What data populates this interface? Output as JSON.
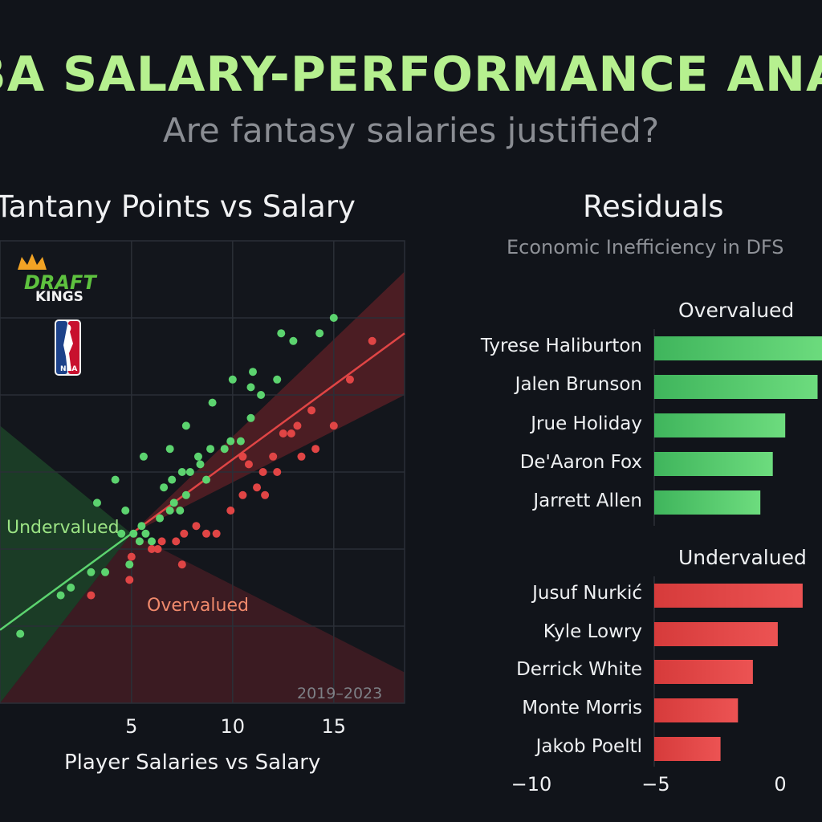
{
  "header": {
    "title": "BA SALARY-PERFORMANCE ANALYSIS",
    "subtitle": "Are fantasy salaries justified?"
  },
  "logos": {
    "draftkings_line1": "DRAFT",
    "draftkings_line2": "KINGS",
    "nba_text": "NBA"
  },
  "colors": {
    "green": "#5cd36f",
    "red": "#e04545",
    "title_green": "#b6f08f",
    "background": "#11141a"
  },
  "chart_data": [
    {
      "type": "scatter",
      "title": "Tantany Points vs Salary",
      "xlabel": "Player Salaries vs Salary",
      "ylabel": "",
      "xlim": [
        -1.5,
        18.5
      ],
      "ylim": [
        0,
        60
      ],
      "x_ticks": [
        5,
        10,
        15
      ],
      "grid": true,
      "region_labels": {
        "upper": "Undervalued",
        "lower": "Overvalued"
      },
      "annotation": "2019–2023",
      "series": [
        {
          "color": "#5cd36f",
          "points": [
            [
              -0.5,
              9
            ],
            [
              1.5,
              14
            ],
            [
              2,
              15
            ],
            [
              3,
              17
            ],
            [
              3.7,
              17
            ],
            [
              3.3,
              26
            ],
            [
              4.5,
              22
            ],
            [
              4.9,
              18
            ],
            [
              4.2,
              29
            ],
            [
              4.7,
              25
            ],
            [
              5.1,
              22
            ],
            [
              5.4,
              21
            ],
            [
              5.5,
              23
            ],
            [
              5.7,
              22
            ],
            [
              6,
              21
            ],
            [
              6.4,
              24
            ],
            [
              6.9,
              25
            ],
            [
              7.1,
              26
            ],
            [
              6.6,
              28
            ],
            [
              7.4,
              25
            ],
            [
              7.7,
              27
            ],
            [
              7,
              29
            ],
            [
              7.5,
              30
            ],
            [
              7.9,
              30
            ],
            [
              8.7,
              29
            ],
            [
              8.4,
              31
            ],
            [
              8.3,
              32
            ],
            [
              8.9,
              33
            ],
            [
              9.6,
              33
            ],
            [
              9.9,
              34
            ],
            [
              10.4,
              34
            ],
            [
              10.9,
              37
            ],
            [
              5.6,
              32
            ],
            [
              6.9,
              33
            ],
            [
              7.7,
              36
            ],
            [
              9,
              39
            ],
            [
              10,
              42
            ],
            [
              10.9,
              41
            ],
            [
              11.4,
              40
            ],
            [
              11,
              43
            ],
            [
              12.2,
              42
            ],
            [
              12.4,
              48
            ],
            [
              13,
              47
            ],
            [
              14.3,
              48
            ],
            [
              15,
              50
            ]
          ]
        },
        {
          "color": "#e04545",
          "points": [
            [
              3,
              14
            ],
            [
              4.9,
              16
            ],
            [
              5,
              19
            ],
            [
              6,
              20
            ],
            [
              6.3,
              20
            ],
            [
              6.5,
              21
            ],
            [
              7.5,
              18
            ],
            [
              7.2,
              21
            ],
            [
              7.6,
              22
            ],
            [
              8.2,
              23
            ],
            [
              8.7,
              22
            ],
            [
              9.2,
              22
            ],
            [
              9.9,
              25
            ],
            [
              10.5,
              27
            ],
            [
              11.2,
              28
            ],
            [
              11.6,
              27
            ],
            [
              12.2,
              30
            ],
            [
              12,
              32
            ],
            [
              12.5,
              35
            ],
            [
              12.9,
              35
            ],
            [
              13.2,
              36
            ],
            [
              13.9,
              38
            ],
            [
              13.4,
              32
            ],
            [
              10.8,
              31
            ],
            [
              11.5,
              30
            ],
            [
              14.1,
              33
            ],
            [
              15,
              36
            ],
            [
              15.8,
              42
            ],
            [
              16.9,
              47
            ],
            [
              10.5,
              32
            ]
          ]
        }
      ],
      "trend_line": {
        "color": "#5cd36f",
        "from": [
          -1.5,
          9.5
        ],
        "to": [
          5,
          22
        ]
      },
      "fit_line": {
        "color": "#e04545",
        "from": [
          5,
          22
        ],
        "to": [
          18.5,
          48
        ]
      }
    },
    {
      "type": "bar",
      "orientation": "horizontal",
      "title": "Residuals",
      "subtitle": "Economic Inefficiency in DFS",
      "x_ticks": [
        -10,
        -5,
        0
      ],
      "groups": [
        {
          "name": "Overvalued",
          "color": "#5cd36f",
          "categories": [
            "Tyrese Haliburton",
            "Jalen Brunson",
            "Jrue Holiday",
            "De'Aaron Fox",
            "Jarrett Allen"
          ],
          "values": [
            2.0,
            1.5,
            0.2,
            -0.3,
            -0.8
          ]
        },
        {
          "name": "Undervalued",
          "color": "#e04545",
          "categories": [
            "Jusuf Nurkić",
            "Kyle Lowry",
            "Derrick White",
            "Monte Morris",
            "Jakob Poeltl"
          ],
          "values": [
            0.9,
            -0.1,
            -1.1,
            -1.7,
            -2.4
          ]
        }
      ]
    }
  ]
}
